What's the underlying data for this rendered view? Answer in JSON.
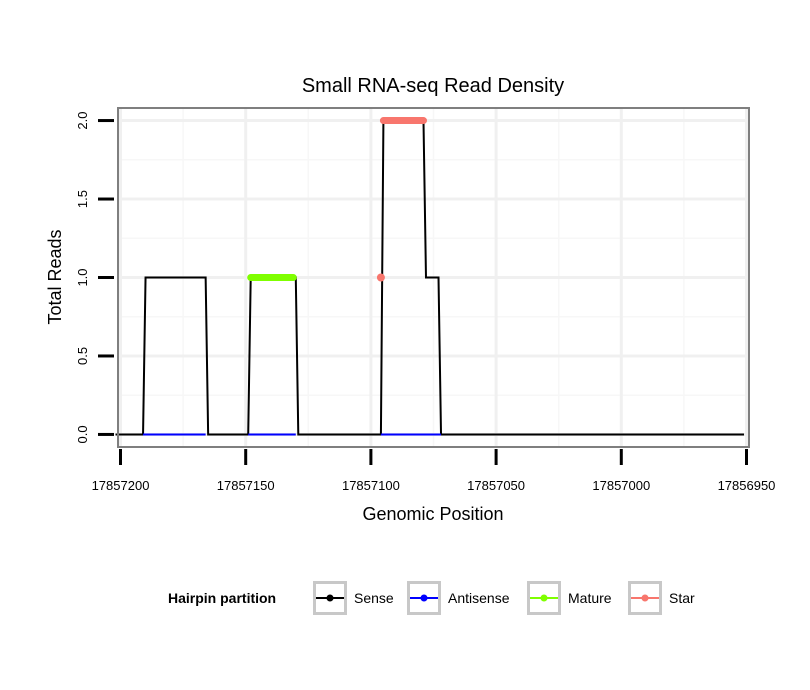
{
  "chart_data": {
    "type": "line",
    "title": "Small RNA-seq Read Density",
    "xlabel": "Genomic Position",
    "ylabel": "Total Reads",
    "x_reversed": true,
    "xlim": [
      17857201,
      17856949
    ],
    "ylim": [
      -0.08,
      2.08
    ],
    "x_ticks": [
      17857200,
      17857150,
      17857100,
      17857050,
      17857000,
      17856950
    ],
    "x_tick_labels": [
      "17857200",
      "17857150",
      "17857100",
      "17857050",
      "17857000",
      "17856950"
    ],
    "y_ticks": [
      0.0,
      0.5,
      1.0,
      1.5,
      2.0
    ],
    "y_tick_labels": [
      "0.0",
      "0.5",
      "1.0",
      "1.5",
      "2.0"
    ],
    "grid": true,
    "legend": {
      "title": "Hairpin partition",
      "position": "bottom",
      "entries": [
        {
          "label": "Sense",
          "color": "#000000"
        },
        {
          "label": "Antisense",
          "color": "#0000ff"
        },
        {
          "label": "Mature",
          "color": "#7fff00"
        },
        {
          "label": "Star",
          "color": "#f8766d"
        }
      ]
    },
    "series": [
      {
        "name": "Sense",
        "color": "#000000",
        "x": [
          17857202,
          17857191,
          17857190,
          17857166,
          17857165,
          17857149,
          17857148,
          17857130,
          17857129,
          17857096,
          17857095,
          17857079,
          17857078,
          17857073,
          17857072,
          17856951
        ],
        "y": [
          0,
          0,
          1,
          1,
          0,
          0,
          1,
          1,
          0,
          0,
          2,
          2,
          1,
          1,
          0,
          0
        ]
      },
      {
        "name": "Antisense",
        "color": "#0000ff",
        "x": [
          17857191,
          17857166,
          17857149,
          17857130,
          17857096,
          17857072
        ],
        "y": [
          0,
          0,
          0,
          0,
          0,
          0
        ],
        "segments": [
          [
            0,
            1
          ],
          [
            2,
            3
          ],
          [
            4,
            5
          ]
        ]
      },
      {
        "name": "Mature",
        "color": "#7fff00",
        "x": [
          17857148,
          17857131
        ],
        "y": [
          1,
          1
        ]
      },
      {
        "name": "Star",
        "color": "#f8766d",
        "x": [
          17857096,
          17857095,
          17857079
        ],
        "y": [
          1,
          2,
          2
        ]
      }
    ]
  }
}
